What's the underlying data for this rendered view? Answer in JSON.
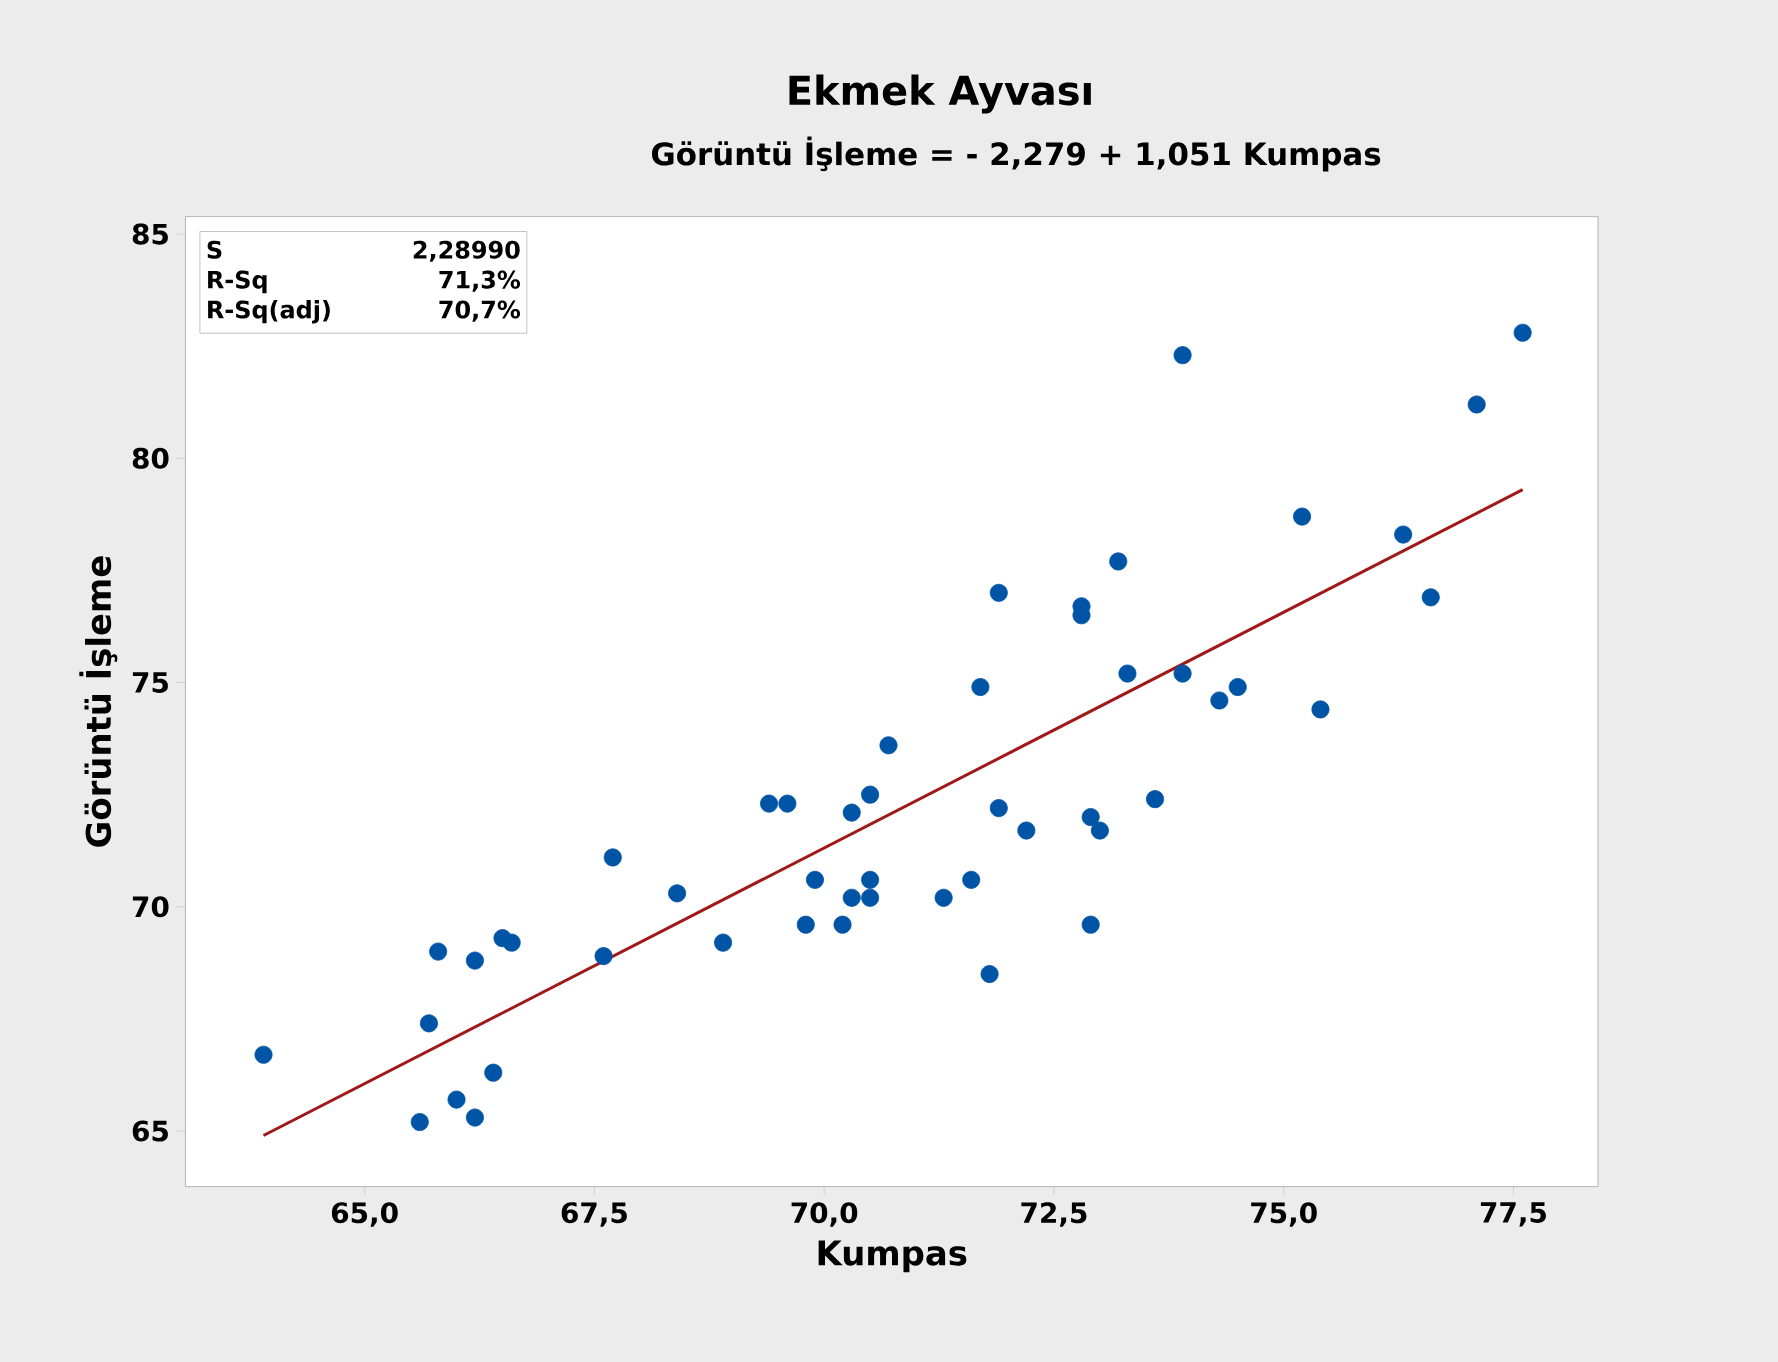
{
  "chart_data": {
    "type": "scatter",
    "title": "Ekmek Ayvası",
    "subtitle": "Görüntü İşleme = - 2,279 + 1,051 Kumpas",
    "xlabel": "Kumpas",
    "ylabel": "Görüntü İşleme",
    "annotations": [
      "S",
      "2,28990",
      "R-Sq",
      "71,3%",
      "R-Sq(adj)",
      "70,7%"
    ],
    "xlim": [
      63.05,
      78.42
    ],
    "ylim": [
      63.76,
      85.39
    ],
    "xticks": [
      {
        "value": 65,
        "label": "65,0"
      },
      {
        "value": 67.5,
        "label": "67,5"
      },
      {
        "value": 70,
        "label": "70,0"
      },
      {
        "value": 72.5,
        "label": "72,5"
      },
      {
        "value": 75,
        "label": "75,0"
      },
      {
        "value": 77.5,
        "label": "77,5"
      }
    ],
    "yticks": [
      65,
      70,
      75,
      80,
      85
    ],
    "grid": false,
    "series": [
      {
        "color": "#0054a6",
        "x": [
          63.9,
          65.6,
          65.7,
          65.8,
          66.0,
          66.2,
          66.2,
          66.4,
          66.5,
          66.6,
          67.6,
          67.7,
          68.4,
          68.9,
          69.4,
          69.6,
          69.8,
          69.9,
          70.2,
          70.3,
          70.3,
          70.5,
          70.5,
          70.5,
          70.7,
          71.3,
          71.6,
          71.7,
          71.8,
          71.9,
          71.9,
          72.2,
          72.8,
          72.8,
          72.9,
          73.0,
          72.9,
          73.2,
          73.3,
          73.6,
          73.9,
          73.9,
          74.3,
          74.5,
          75.2,
          75.4,
          76.3,
          76.6,
          77.1,
          77.6
        ],
        "values": [
          66.7,
          65.2,
          67.4,
          69.0,
          65.7,
          65.3,
          68.8,
          66.3,
          69.3,
          69.2,
          68.9,
          71.1,
          70.3,
          69.2,
          72.3,
          72.3,
          69.6,
          70.6,
          69.6,
          72.1,
          70.2,
          72.5,
          70.2,
          70.6,
          73.6,
          70.2,
          70.6,
          74.9,
          68.5,
          77.0,
          72.2,
          71.7,
          76.7,
          76.5,
          72.0,
          71.7,
          69.6,
          77.7,
          75.2,
          72.4,
          82.3,
          75.2,
          74.6,
          74.9,
          78.7,
          74.4,
          78.3,
          76.9,
          81.2,
          82.8
        ]
      },
      {
        "type": "line",
        "color": "#a01818",
        "x": [
          63.9,
          77.6
        ],
        "values": [
          64.9,
          79.3
        ]
      }
    ]
  }
}
